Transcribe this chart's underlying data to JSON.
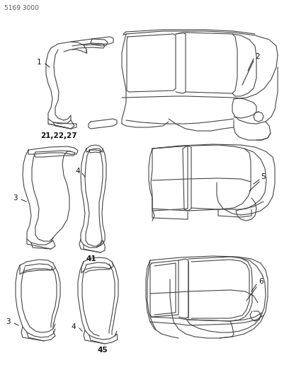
{
  "part_number": "5169 3000",
  "bg": "#ffffff",
  "lc": "#444444",
  "fig_width": 4.08,
  "fig_height": 5.33,
  "dpi": 100,
  "labels": {
    "part_num": "5169 3000",
    "l1": "1",
    "l2": "2",
    "l21": "21,22,27",
    "l3a": "3",
    "l3b": "3",
    "l4a": "4",
    "l4b": "4",
    "l5": "5",
    "l6": "6",
    "l41": "41",
    "l45": "45"
  }
}
